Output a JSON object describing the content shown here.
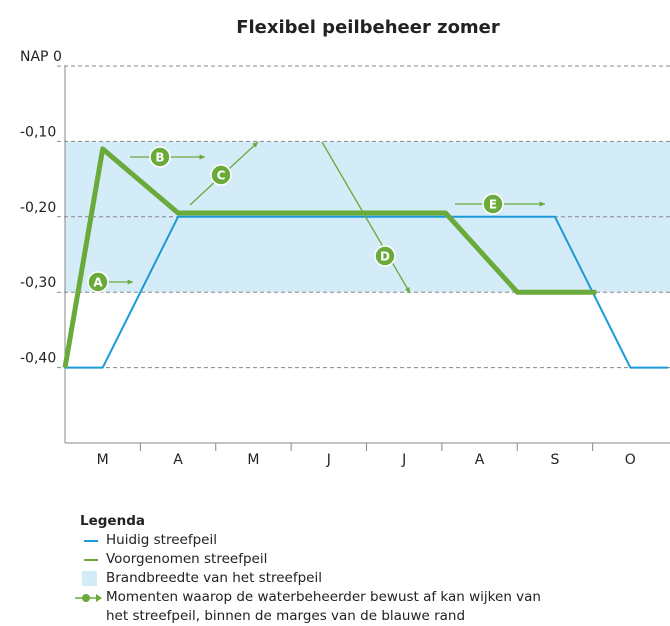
{
  "chart_data": {
    "type": "line",
    "title": "Flexibel peilbeheer zomer",
    "xlim": [
      0,
      8
    ],
    "xticks": [
      {
        "value": 0.5,
        "label": "M"
      },
      {
        "value": 1.5,
        "label": "A"
      },
      {
        "value": 2.5,
        "label": "M"
      },
      {
        "value": 3.5,
        "label": "J"
      },
      {
        "value": 4.5,
        "label": "J"
      },
      {
        "value": 5.5,
        "label": "A"
      },
      {
        "value": 6.5,
        "label": "S"
      },
      {
        "value": 7.5,
        "label": "O"
      }
    ],
    "ylim": [
      -0.5,
      0
    ],
    "yticks": [
      {
        "value": 0,
        "label": "NAP 0"
      },
      {
        "value": -0.1,
        "label": "-0,10"
      },
      {
        "value": -0.2,
        "label": "-0,20"
      },
      {
        "value": -0.3,
        "label": "-0,30"
      },
      {
        "value": -0.4,
        "label": "-0,40"
      }
    ],
    "grid": true,
    "band": {
      "name": "Brandbreedte van het streefpeil",
      "range": [
        -0.3,
        -0.1
      ],
      "color": "#d4ebf8"
    },
    "series": [
      {
        "name": "Huidig streefpeil",
        "color": "#1a9ad6",
        "x": [
          0,
          0.5,
          1.5,
          6.5,
          7.5,
          8
        ],
        "values": [
          -0.4,
          -0.4,
          -0.2,
          -0.2,
          -0.4,
          -0.4
        ]
      },
      {
        "name": "Voorgenomen streefpeil",
        "color": "#6aaa3a",
        "x": [
          0,
          0.5,
          1.5,
          5.05,
          6,
          7.05
        ],
        "values": [
          -0.4,
          -0.11,
          -0.195,
          -0.195,
          -0.3,
          -0.3
        ]
      }
    ],
    "annotations": [
      "A",
      "B",
      "C",
      "D",
      "E"
    ],
    "legend_title": "Legenda",
    "legend_note": "Momenten waarop de waterbeheerder bewust af kan wijken van het streefpeil, binnen de marges van de blauwe rand"
  }
}
